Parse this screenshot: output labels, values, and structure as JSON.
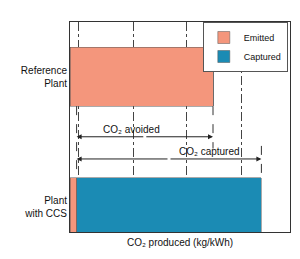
{
  "chart_data": {
    "type": "bar",
    "orientation": "horizontal",
    "stacked": true,
    "categories": [
      "Reference Plant",
      "Plant with CCS"
    ],
    "series": [
      {
        "name": "Emitted",
        "color": "#f4967c",
        "values": [
          0.65,
          0.03
        ]
      },
      {
        "name": "Captured",
        "color": "#1b8bb4",
        "values": [
          0,
          0.84
        ]
      }
    ],
    "x_label": "CO₂ produced (kg/kWh)",
    "xlim": [
      0,
      1
    ],
    "xticks": [
      0.04,
      0.29,
      0.53,
      0.78
    ],
    "grid": true,
    "tick_labels": "y",
    "legend": "upper right",
    "annotations": [
      "CO₂ avoided",
      "CO₂ captured"
    ]
  }
}
